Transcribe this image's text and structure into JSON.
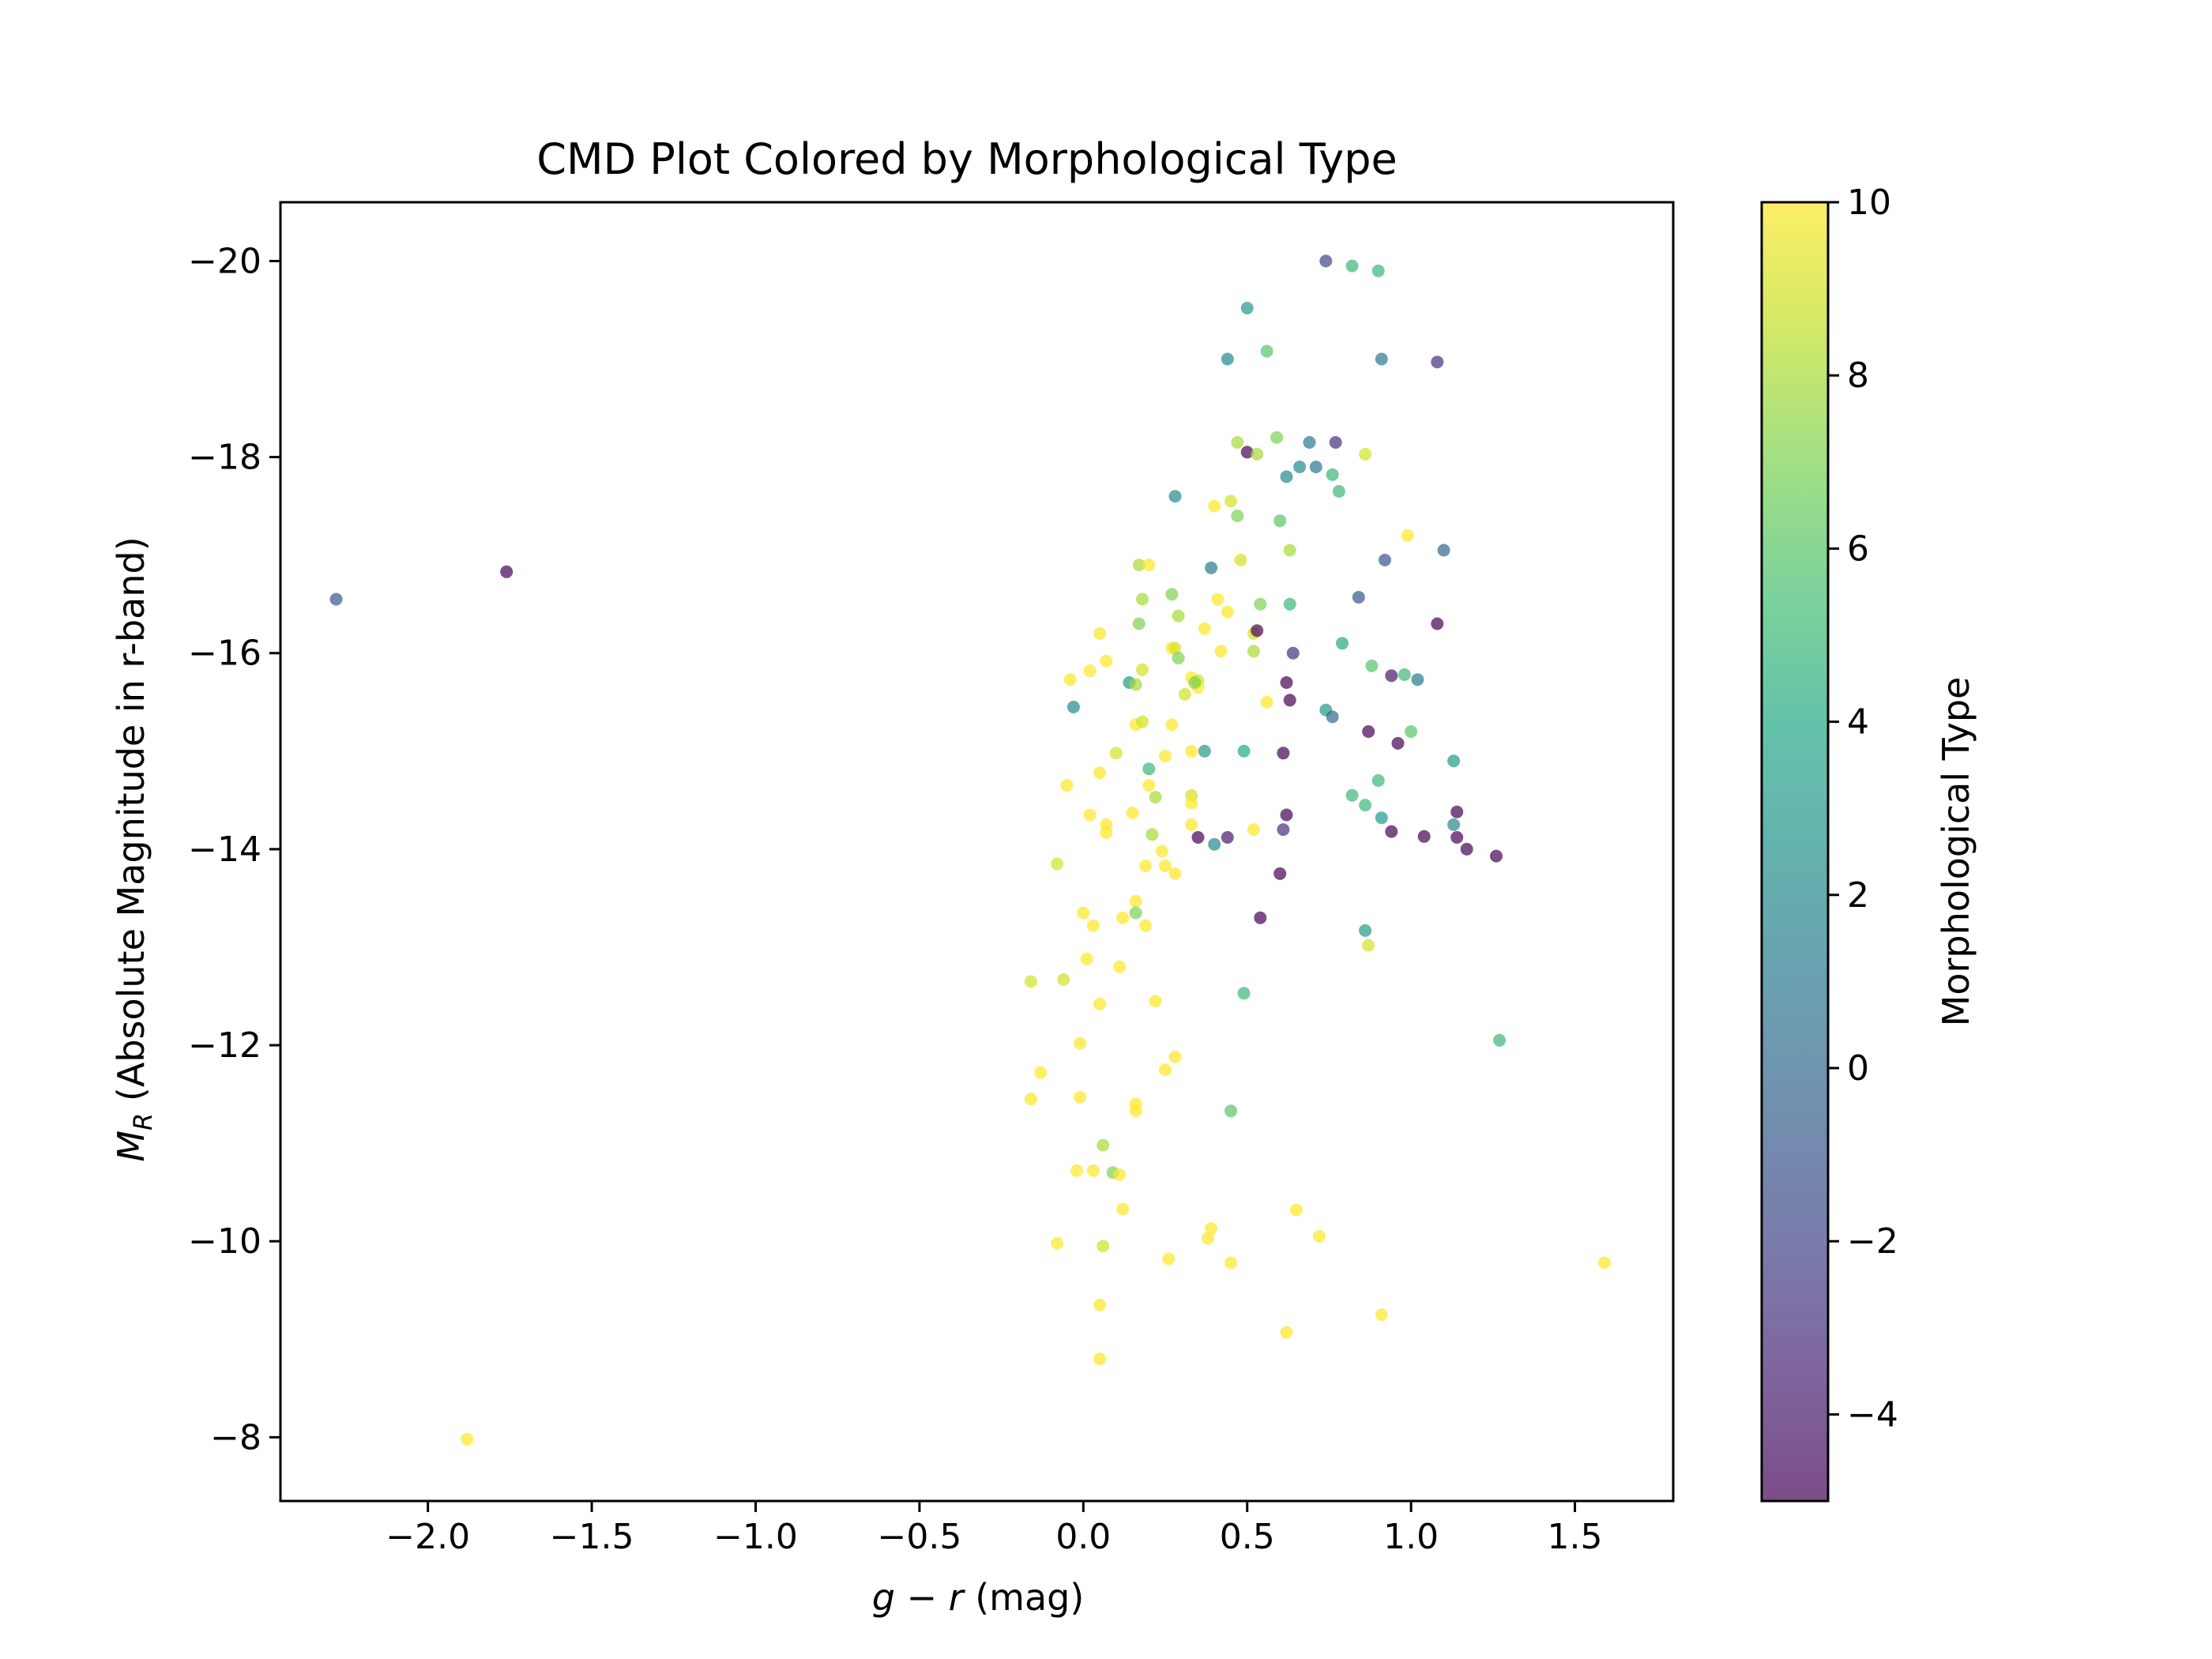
{
  "chart_data": {
    "type": "scatter",
    "title": "CMD Plot Colored by Morphological Type",
    "xlabel": {
      "base": "g − r",
      "suffix": " (mag)"
    },
    "ylabel": {
      "main": "M",
      "sub": "R",
      "rest": " (Absolute Magnitude in r-band)"
    },
    "colorbar_label": "Morphological Type",
    "xlim": [
      -2.45,
      1.8
    ],
    "ylim": [
      -7.35,
      -20.6
    ],
    "y_inverted": true,
    "grid": false,
    "legend": "none",
    "x_ticks": [
      {
        "v": -2.0,
        "label": "−2.0"
      },
      {
        "v": -1.5,
        "label": "−1.5"
      },
      {
        "v": -1.0,
        "label": "−1.0"
      },
      {
        "v": -0.5,
        "label": "−0.5"
      },
      {
        "v": 0.0,
        "label": "0.0"
      },
      {
        "v": 0.5,
        "label": "0.5"
      },
      {
        "v": 1.0,
        "label": "1.0"
      },
      {
        "v": 1.5,
        "label": "1.5"
      }
    ],
    "y_ticks": [
      {
        "v": -20,
        "label": "−20"
      },
      {
        "v": -18,
        "label": "−18"
      },
      {
        "v": -16,
        "label": "−16"
      },
      {
        "v": -14,
        "label": "−14"
      },
      {
        "v": -12,
        "label": "−12"
      },
      {
        "v": -10,
        "label": "−10"
      },
      {
        "v": -8,
        "label": "−8"
      }
    ],
    "colorbar": {
      "range": [
        -5,
        10
      ],
      "ticks": [
        {
          "v": 10,
          "label": "10"
        },
        {
          "v": 8,
          "label": "8"
        },
        {
          "v": 6,
          "label": "6"
        },
        {
          "v": 4,
          "label": "4"
        },
        {
          "v": 2,
          "label": "2"
        },
        {
          "v": 0,
          "label": "0"
        },
        {
          "v": -2,
          "label": "−2"
        },
        {
          "v": -4,
          "label": "−4"
        }
      ],
      "colormap": "viridis",
      "alpha": 0.7
    },
    "points": [
      [
        -2.28,
        -16.55,
        -1
      ],
      [
        -1.76,
        -16.83,
        -5
      ],
      [
        -1.88,
        -7.98,
        10
      ],
      [
        0.74,
        -20.0,
        -2
      ],
      [
        0.82,
        -19.95,
        5
      ],
      [
        0.9,
        -19.9,
        5
      ],
      [
        0.5,
        -19.52,
        3
      ],
      [
        0.44,
        -19.0,
        2
      ],
      [
        0.56,
        -19.08,
        6
      ],
      [
        0.91,
        -19.0,
        1
      ],
      [
        1.08,
        -18.97,
        -3
      ],
      [
        0.47,
        -18.15,
        8
      ],
      [
        0.59,
        -18.2,
        7
      ],
      [
        0.69,
        -18.15,
        1
      ],
      [
        0.77,
        -18.15,
        -3
      ],
      [
        0.5,
        -18.05,
        -5
      ],
      [
        0.53,
        -18.03,
        8
      ],
      [
        0.86,
        -18.03,
        9
      ],
      [
        0.62,
        -17.8,
        2
      ],
      [
        0.66,
        -17.9,
        2
      ],
      [
        0.71,
        -17.9,
        1
      ],
      [
        0.76,
        -17.82,
        5
      ],
      [
        0.78,
        -17.65,
        5
      ],
      [
        0.28,
        -17.6,
        2
      ],
      [
        0.4,
        -17.5,
        10
      ],
      [
        0.45,
        -17.55,
        9
      ],
      [
        0.47,
        -17.4,
        7
      ],
      [
        0.6,
        -17.35,
        6
      ],
      [
        0.99,
        -17.2,
        10
      ],
      [
        1.1,
        -17.05,
        0
      ],
      [
        0.63,
        -17.05,
        8
      ],
      [
        0.48,
        -16.95,
        9
      ],
      [
        0.92,
        -16.95,
        -1
      ],
      [
        0.17,
        -16.9,
        8
      ],
      [
        0.2,
        -16.9,
        10
      ],
      [
        0.39,
        -16.87,
        1
      ],
      [
        0.18,
        -16.55,
        8
      ],
      [
        0.27,
        -16.6,
        7
      ],
      [
        0.41,
        -16.55,
        10
      ],
      [
        0.54,
        -16.5,
        7
      ],
      [
        0.63,
        -16.5,
        5
      ],
      [
        0.84,
        -16.57,
        -1
      ],
      [
        0.44,
        -16.42,
        10
      ],
      [
        0.17,
        -16.3,
        7
      ],
      [
        0.29,
        -16.38,
        8
      ],
      [
        0.37,
        -16.25,
        10
      ],
      [
        0.52,
        -16.2,
        9
      ],
      [
        0.53,
        -16.23,
        -5
      ],
      [
        1.08,
        -16.3,
        -5
      ],
      [
        0.05,
        -16.2,
        10
      ],
      [
        0.27,
        -16.05,
        10
      ],
      [
        0.28,
        -16.05,
        9
      ],
      [
        0.42,
        -16.02,
        10
      ],
      [
        0.52,
        -16.02,
        8
      ],
      [
        0.64,
        -16.0,
        -3
      ],
      [
        0.79,
        -16.1,
        4
      ],
      [
        0.07,
        -15.92,
        10
      ],
      [
        0.29,
        -15.95,
        7
      ],
      [
        0.02,
        -15.82,
        10
      ],
      [
        0.18,
        -15.83,
        9
      ],
      [
        0.33,
        -15.75,
        10
      ],
      [
        0.35,
        -15.72,
        9
      ],
      [
        0.62,
        -15.7,
        -5
      ],
      [
        0.88,
        -15.87,
        6
      ],
      [
        0.94,
        -15.77,
        -4
      ],
      [
        0.98,
        -15.78,
        5
      ],
      [
        1.02,
        -15.73,
        1
      ],
      [
        -0.04,
        -15.73,
        10
      ],
      [
        0.14,
        -15.7,
        3
      ],
      [
        0.16,
        -15.68,
        8
      ],
      [
        0.31,
        -15.58,
        9
      ],
      [
        0.35,
        -15.65,
        10
      ],
      [
        0.34,
        -15.7,
        7
      ],
      [
        0.56,
        -15.5,
        10
      ],
      [
        0.63,
        -15.52,
        -5
      ],
      [
        0.74,
        -15.42,
        3
      ],
      [
        0.76,
        -15.35,
        0
      ],
      [
        -0.03,
        -15.45,
        2
      ],
      [
        0.16,
        -15.27,
        10
      ],
      [
        0.18,
        -15.3,
        9
      ],
      [
        0.27,
        -15.27,
        10
      ],
      [
        0.87,
        -15.2,
        -5
      ],
      [
        1.0,
        -15.2,
        6
      ],
      [
        0.96,
        -15.08,
        -5
      ],
      [
        0.1,
        -14.98,
        9
      ],
      [
        0.25,
        -14.95,
        10
      ],
      [
        0.33,
        -15.0,
        10
      ],
      [
        0.37,
        -15.0,
        3
      ],
      [
        0.49,
        -15.0,
        4
      ],
      [
        0.61,
        -14.98,
        -5
      ],
      [
        1.13,
        -14.9,
        3
      ],
      [
        0.05,
        -14.78,
        10
      ],
      [
        0.2,
        -14.82,
        5
      ],
      [
        0.9,
        -14.7,
        5
      ],
      [
        -0.05,
        -14.65,
        10
      ],
      [
        0.2,
        -14.65,
        10
      ],
      [
        0.22,
        -14.53,
        8
      ],
      [
        0.33,
        -14.55,
        9
      ],
      [
        0.33,
        -14.47,
        10
      ],
      [
        0.82,
        -14.55,
        5
      ],
      [
        0.86,
        -14.45,
        5
      ],
      [
        0.02,
        -14.35,
        10
      ],
      [
        0.15,
        -14.37,
        10
      ],
      [
        0.62,
        -14.35,
        -5
      ],
      [
        0.91,
        -14.32,
        3
      ],
      [
        1.13,
        -14.25,
        2
      ],
      [
        1.14,
        -14.38,
        -5
      ],
      [
        0.07,
        -14.25,
        10
      ],
      [
        0.07,
        -14.17,
        10
      ],
      [
        0.33,
        -14.25,
        10
      ],
      [
        0.52,
        -14.2,
        10
      ],
      [
        0.61,
        -14.2,
        -3
      ],
      [
        0.94,
        -14.18,
        -5
      ],
      [
        0.21,
        -14.15,
        8
      ],
      [
        0.35,
        -14.12,
        -5
      ],
      [
        0.44,
        -14.12,
        -4
      ],
      [
        1.04,
        -14.13,
        -5
      ],
      [
        1.14,
        -14.12,
        -5
      ],
      [
        0.4,
        -14.05,
        2
      ],
      [
        0.24,
        -13.98,
        10
      ],
      [
        1.17,
        -14.0,
        -5
      ],
      [
        1.26,
        -13.93,
        -5
      ],
      [
        -0.08,
        -13.85,
        9
      ],
      [
        0.19,
        -13.83,
        10
      ],
      [
        0.25,
        -13.83,
        10
      ],
      [
        0.28,
        -13.75,
        10
      ],
      [
        0.6,
        -13.75,
        -5
      ],
      [
        0.16,
        -13.47,
        10
      ],
      [
        0.0,
        -13.35,
        10
      ],
      [
        0.12,
        -13.3,
        10
      ],
      [
        0.16,
        -13.35,
        7
      ],
      [
        0.03,
        -13.22,
        10
      ],
      [
        0.19,
        -13.22,
        10
      ],
      [
        0.54,
        -13.3,
        -5
      ],
      [
        0.86,
        -13.17,
        3
      ],
      [
        0.87,
        -13.02,
        9
      ],
      [
        0.01,
        -12.88,
        10
      ],
      [
        0.11,
        -12.8,
        10
      ],
      [
        -0.16,
        -12.65,
        9
      ],
      [
        -0.06,
        -12.67,
        9
      ],
      [
        0.05,
        -12.42,
        10
      ],
      [
        0.22,
        -12.45,
        10
      ],
      [
        0.49,
        -12.53,
        5
      ],
      [
        1.27,
        -12.05,
        5
      ],
      [
        -0.01,
        -12.02,
        10
      ],
      [
        0.28,
        -11.88,
        10
      ],
      [
        -0.13,
        -11.72,
        10
      ],
      [
        0.25,
        -11.75,
        10
      ],
      [
        -0.16,
        -11.45,
        10
      ],
      [
        -0.01,
        -11.47,
        10
      ],
      [
        0.16,
        -11.4,
        10
      ],
      [
        0.16,
        -11.33,
        10
      ],
      [
        0.45,
        -11.33,
        6
      ],
      [
        0.06,
        -10.98,
        8
      ],
      [
        -0.02,
        -10.72,
        10
      ],
      [
        0.03,
        -10.72,
        10
      ],
      [
        0.09,
        -10.7,
        7
      ],
      [
        0.11,
        -10.68,
        10
      ],
      [
        0.12,
        -10.33,
        10
      ],
      [
        0.65,
        -10.32,
        10
      ],
      [
        0.39,
        -10.13,
        10
      ],
      [
        0.38,
        -10.03,
        10
      ],
      [
        0.72,
        -10.05,
        10
      ],
      [
        -0.08,
        -9.98,
        10
      ],
      [
        0.06,
        -9.95,
        9
      ],
      [
        0.26,
        -9.82,
        10
      ],
      [
        0.45,
        -9.78,
        10
      ],
      [
        1.59,
        -9.78,
        10
      ],
      [
        0.05,
        -9.35,
        10
      ],
      [
        0.91,
        -9.25,
        10
      ],
      [
        0.62,
        -9.07,
        10
      ],
      [
        0.05,
        -8.8,
        10
      ]
    ]
  }
}
